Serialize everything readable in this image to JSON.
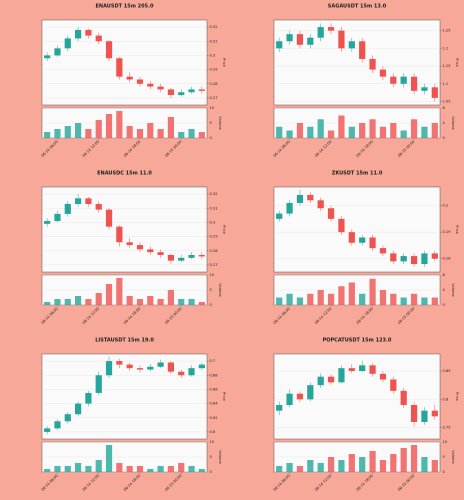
{
  "chart_data": [
    {
      "type": "candlestick",
      "title": "ENAUSDT 15m 205.0",
      "ylabel": "Price",
      "vlabel": "Volume",
      "up_color": "#26a69a",
      "down_color": "#ef5350",
      "x": [
        null,
        "06-14 06:00",
        null,
        null,
        null,
        "06-14 12:00",
        null,
        null,
        null,
        "06-14 18:00",
        null,
        null,
        null,
        "06-15 00:00",
        null,
        null
      ],
      "ohlc": [
        [
          0.298,
          0.302,
          0.296,
          0.3
        ],
        [
          0.3,
          0.307,
          0.299,
          0.305
        ],
        [
          0.305,
          0.314,
          0.303,
          0.312
        ],
        [
          0.312,
          0.32,
          0.31,
          0.318
        ],
        [
          0.318,
          0.319,
          0.312,
          0.314
        ],
        [
          0.314,
          0.316,
          0.308,
          0.31
        ],
        [
          0.31,
          0.311,
          0.296,
          0.298
        ],
        [
          0.298,
          0.299,
          0.283,
          0.285
        ],
        [
          0.285,
          0.288,
          0.281,
          0.283
        ],
        [
          0.283,
          0.285,
          0.278,
          0.28
        ],
        [
          0.28,
          0.282,
          0.276,
          0.278
        ],
        [
          0.278,
          0.28,
          0.274,
          0.276
        ],
        [
          0.276,
          0.277,
          0.27,
          0.272
        ],
        [
          0.272,
          0.276,
          0.271,
          0.274
        ],
        [
          0.274,
          0.278,
          0.273,
          0.276
        ],
        [
          0.276,
          0.278,
          0.273,
          0.275
        ]
      ],
      "volume": [
        2,
        3,
        4,
        5,
        3,
        6,
        8,
        9,
        4,
        3,
        5,
        3,
        7,
        2,
        3,
        2
      ],
      "ylim": [
        0.265,
        0.325
      ],
      "yticks": [
        0.27,
        0.28,
        0.29,
        0.3,
        0.31,
        0.32
      ],
      "vlim": [
        0,
        10
      ],
      "vticks": [
        0,
        5,
        10
      ],
      "grid": true
    },
    {
      "type": "candlestick",
      "title": "SAGAUSDT 15m 13.0",
      "ylabel": "Price",
      "vlabel": "Volume",
      "up_color": "#26a69a",
      "down_color": "#ef5350",
      "x": [
        null,
        "06-14 06:00",
        null,
        null,
        null,
        "06-14 12:00",
        null,
        null,
        null,
        "06-14 18:00",
        null,
        null,
        null,
        "06-15 00:00",
        null,
        null
      ],
      "ohlc": [
        [
          1.2,
          1.23,
          1.19,
          1.22
        ],
        [
          1.22,
          1.25,
          1.21,
          1.24
        ],
        [
          1.24,
          1.25,
          1.2,
          1.21
        ],
        [
          1.21,
          1.24,
          1.2,
          1.23
        ],
        [
          1.23,
          1.27,
          1.22,
          1.26
        ],
        [
          1.26,
          1.27,
          1.24,
          1.25
        ],
        [
          1.25,
          1.26,
          1.19,
          1.2
        ],
        [
          1.2,
          1.23,
          1.19,
          1.22
        ],
        [
          1.22,
          1.23,
          1.16,
          1.17
        ],
        [
          1.17,
          1.18,
          1.13,
          1.14
        ],
        [
          1.14,
          1.15,
          1.11,
          1.12
        ],
        [
          1.12,
          1.13,
          1.09,
          1.1
        ],
        [
          1.1,
          1.13,
          1.09,
          1.12
        ],
        [
          1.12,
          1.13,
          1.07,
          1.08
        ],
        [
          1.08,
          1.1,
          1.07,
          1.09
        ],
        [
          1.09,
          1.1,
          1.05,
          1.06
        ]
      ],
      "volume": [
        3,
        2,
        4,
        3,
        5,
        2,
        6,
        3,
        4,
        5,
        3,
        4,
        2,
        5,
        3,
        4
      ],
      "ylim": [
        1.04,
        1.28
      ],
      "yticks": [
        1.05,
        1.1,
        1.15,
        1.2,
        1.25
      ],
      "vlim": [
        0,
        8
      ],
      "vticks": [
        0,
        4,
        8
      ],
      "grid": true
    },
    {
      "type": "candlestick",
      "title": "ENAUSDC 15m 11.0",
      "ylabel": "Price",
      "vlabel": "Volume",
      "up_color": "#26a69a",
      "down_color": "#ef5350",
      "x": [
        null,
        "06-14 06:00",
        null,
        null,
        null,
        "06-14 12:00",
        null,
        null,
        null,
        "06-14 18:00",
        null,
        null,
        null,
        "06-15 00:00",
        null,
        null
      ],
      "ohlc": [
        [
          0.299,
          0.303,
          0.297,
          0.301
        ],
        [
          0.301,
          0.308,
          0.3,
          0.306
        ],
        [
          0.306,
          0.315,
          0.304,
          0.313
        ],
        [
          0.313,
          0.32,
          0.311,
          0.317
        ],
        [
          0.317,
          0.318,
          0.311,
          0.313
        ],
        [
          0.313,
          0.315,
          0.307,
          0.309
        ],
        [
          0.309,
          0.31,
          0.295,
          0.297
        ],
        [
          0.297,
          0.298,
          0.283,
          0.286
        ],
        [
          0.286,
          0.289,
          0.282,
          0.284
        ],
        [
          0.284,
          0.286,
          0.279,
          0.281
        ],
        [
          0.281,
          0.283,
          0.277,
          0.279
        ],
        [
          0.279,
          0.281,
          0.275,
          0.277
        ],
        [
          0.277,
          0.278,
          0.271,
          0.273
        ],
        [
          0.273,
          0.277,
          0.272,
          0.275
        ],
        [
          0.275,
          0.279,
          0.274,
          0.277
        ],
        [
          0.277,
          0.279,
          0.274,
          0.276
        ]
      ],
      "volume": [
        1,
        2,
        2,
        3,
        2,
        4,
        7,
        9,
        3,
        2,
        3,
        2,
        5,
        2,
        2,
        1
      ],
      "ylim": [
        0.265,
        0.325
      ],
      "yticks": [
        0.27,
        0.28,
        0.29,
        0.3,
        0.31,
        0.32
      ],
      "vlim": [
        0,
        10
      ],
      "vticks": [
        0,
        5,
        10
      ],
      "grid": true
    },
    {
      "type": "candlestick",
      "title": "ZKUSDT 15m 11.0",
      "ylabel": "Price",
      "vlabel": "Volume",
      "up_color": "#26a69a",
      "down_color": "#ef5350",
      "x": [
        null,
        "06-14 06:00",
        null,
        null,
        null,
        "06-14 12:00",
        null,
        null,
        null,
        "06-14 18:00",
        null,
        null,
        null,
        "06-15 00:00",
        null,
        null
      ],
      "ohlc": [
        [
          0.195,
          0.198,
          0.194,
          0.197
        ],
        [
          0.197,
          0.202,
          0.196,
          0.201
        ],
        [
          0.201,
          0.206,
          0.2,
          0.204
        ],
        [
          0.204,
          0.205,
          0.201,
          0.202
        ],
        [
          0.202,
          0.203,
          0.198,
          0.199
        ],
        [
          0.199,
          0.2,
          0.194,
          0.195
        ],
        [
          0.195,
          0.196,
          0.189,
          0.19
        ],
        [
          0.19,
          0.191,
          0.185,
          0.186
        ],
        [
          0.186,
          0.189,
          0.185,
          0.188
        ],
        [
          0.188,
          0.189,
          0.183,
          0.184
        ],
        [
          0.184,
          0.185,
          0.181,
          0.182
        ],
        [
          0.182,
          0.183,
          0.178,
          0.179
        ],
        [
          0.179,
          0.182,
          0.178,
          0.181
        ],
        [
          0.181,
          0.182,
          0.177,
          0.178
        ],
        [
          0.178,
          0.183,
          0.177,
          0.182
        ],
        [
          0.182,
          0.183,
          0.179,
          0.18
        ]
      ],
      "volume": [
        2,
        3,
        2,
        3,
        4,
        3,
        5,
        6,
        3,
        7,
        4,
        3,
        2,
        3,
        2,
        2
      ],
      "ylim": [
        0.175,
        0.207
      ],
      "yticks": [
        0.18,
        0.19,
        0.2
      ],
      "vlim": [
        0,
        8
      ],
      "vticks": [
        0,
        4,
        8
      ],
      "grid": true
    },
    {
      "type": "candlestick",
      "title": "LISTAUSDT 15m 19.0",
      "ylabel": "Price",
      "vlabel": "Volume",
      "up_color": "#26a69a",
      "down_color": "#ef5350",
      "x": [
        null,
        "06-14 06:00",
        null,
        null,
        null,
        "06-14 12:00",
        null,
        null,
        null,
        "06-14 18:00",
        null,
        null,
        null,
        "06-15 00:00",
        null,
        null
      ],
      "ohlc": [
        [
          0.6,
          0.608,
          0.597,
          0.605
        ],
        [
          0.605,
          0.618,
          0.603,
          0.615
        ],
        [
          0.615,
          0.628,
          0.612,
          0.625
        ],
        [
          0.625,
          0.643,
          0.622,
          0.64
        ],
        [
          0.64,
          0.658,
          0.636,
          0.655
        ],
        [
          0.655,
          0.685,
          0.652,
          0.68
        ],
        [
          0.68,
          0.706,
          0.676,
          0.7
        ],
        [
          0.7,
          0.703,
          0.69,
          0.695
        ],
        [
          0.695,
          0.698,
          0.686,
          0.69
        ],
        [
          0.69,
          0.694,
          0.684,
          0.688
        ],
        [
          0.688,
          0.696,
          0.686,
          0.692
        ],
        [
          0.692,
          0.702,
          0.69,
          0.698
        ],
        [
          0.698,
          0.7,
          0.682,
          0.685
        ],
        [
          0.685,
          0.688,
          0.676,
          0.68
        ],
        [
          0.68,
          0.694,
          0.678,
          0.69
        ],
        [
          0.69,
          0.698,
          0.687,
          0.695
        ]
      ],
      "volume": [
        1,
        2,
        2,
        3,
        2,
        4,
        9,
        3,
        2,
        2,
        1,
        2,
        2,
        3,
        2,
        1
      ],
      "ylim": [
        0.59,
        0.71
      ],
      "yticks": [
        0.6,
        0.62,
        0.64,
        0.66,
        0.68,
        0.7
      ],
      "vlim": [
        0,
        10
      ],
      "vticks": [
        0,
        5,
        10
      ],
      "grid": true
    },
    {
      "type": "candlestick",
      "title": "POPCATUSDT 15m 123.0",
      "ylabel": "Price",
      "vlabel": "Volume",
      "up_color": "#26a69a",
      "down_color": "#ef5350",
      "x": [
        null,
        "06-14 06:00",
        null,
        null,
        null,
        "06-14 12:00",
        null,
        null,
        null,
        "06-14 18:00",
        null,
        null,
        null,
        "06-15 00:00",
        null,
        null
      ],
      "ohlc": [
        [
          0.78,
          0.796,
          0.772,
          0.79
        ],
        [
          0.79,
          0.818,
          0.786,
          0.81
        ],
        [
          0.81,
          0.814,
          0.795,
          0.8
        ],
        [
          0.8,
          0.83,
          0.797,
          0.825
        ],
        [
          0.825,
          0.846,
          0.82,
          0.84
        ],
        [
          0.84,
          0.845,
          0.826,
          0.83
        ],
        [
          0.83,
          0.86,
          0.828,
          0.855
        ],
        [
          0.855,
          0.862,
          0.846,
          0.85
        ],
        [
          0.85,
          0.868,
          0.848,
          0.86
        ],
        [
          0.86,
          0.864,
          0.84,
          0.845
        ],
        [
          0.845,
          0.85,
          0.83,
          0.835
        ],
        [
          0.835,
          0.84,
          0.81,
          0.815
        ],
        [
          0.815,
          0.82,
          0.785,
          0.79
        ],
        [
          0.79,
          0.795,
          0.752,
          0.76
        ],
        [
          0.76,
          0.786,
          0.755,
          0.78
        ],
        [
          0.78,
          0.79,
          0.764,
          0.77
        ]
      ],
      "volume": [
        2,
        3,
        2,
        4,
        3,
        5,
        4,
        6,
        5,
        7,
        4,
        6,
        8,
        9,
        5,
        4
      ],
      "ylim": [
        0.73,
        0.88
      ],
      "yticks": [
        0.75,
        0.8,
        0.85
      ],
      "vlim": [
        0,
        10
      ],
      "vticks": [
        0,
        5,
        10
      ],
      "grid": true
    }
  ]
}
